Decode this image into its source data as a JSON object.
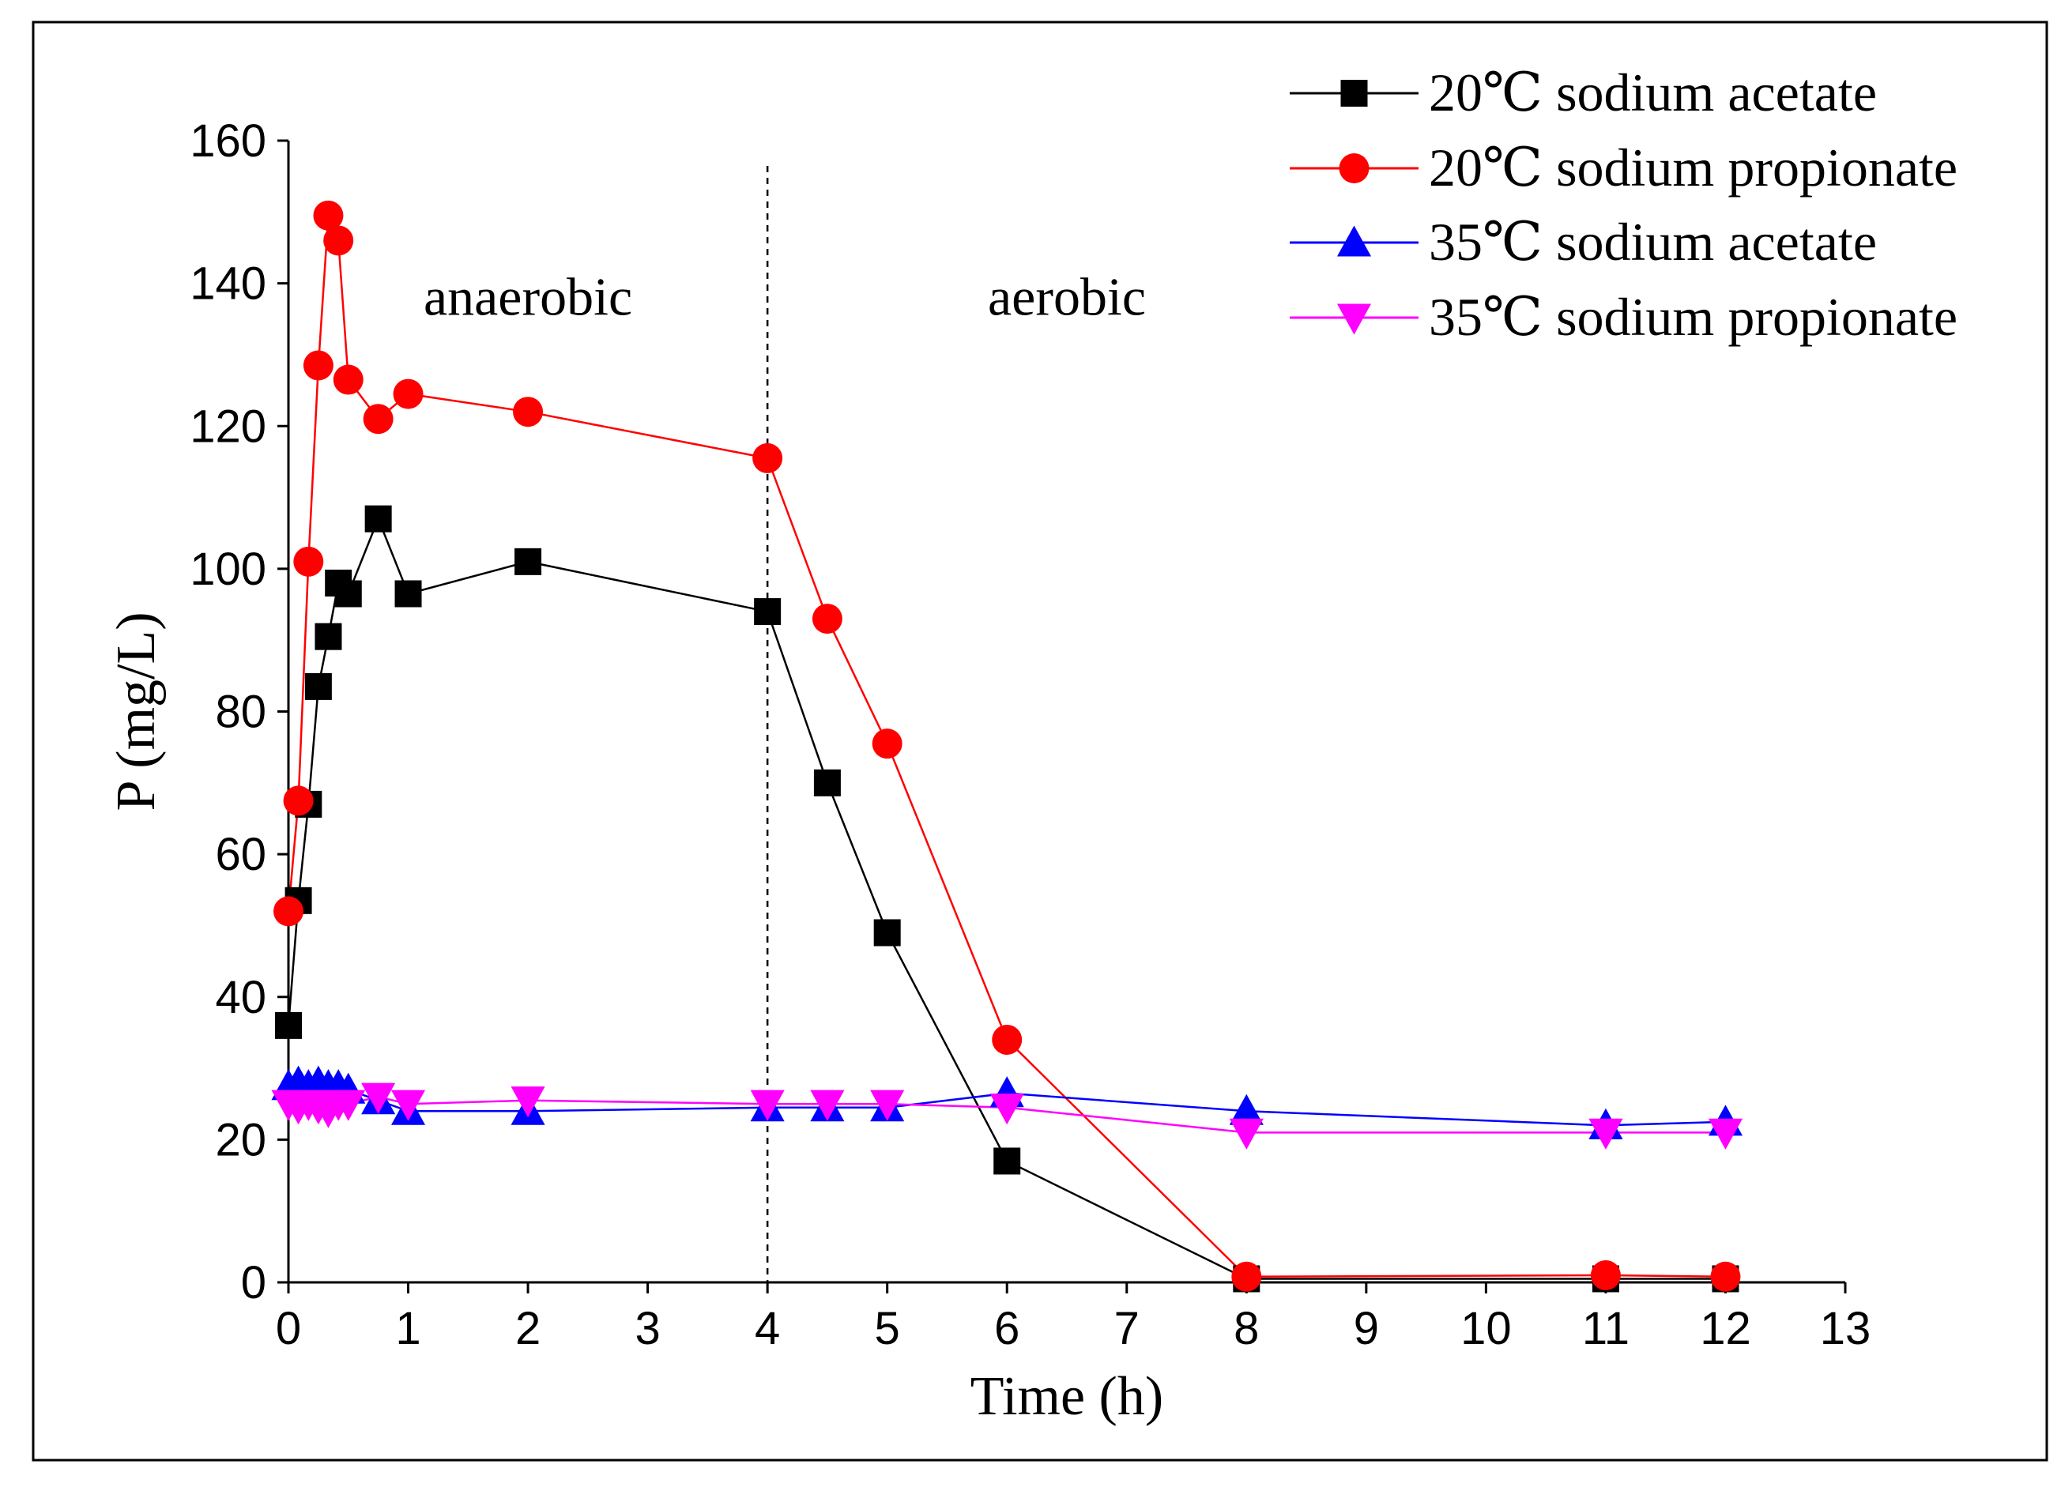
{
  "chart_data": {
    "type": "line",
    "title": "",
    "xlabel": "Time (h)",
    "ylabel": "P (mg/L)",
    "xlim": [
      0,
      13
    ],
    "ylim": [
      0,
      160
    ],
    "xticks": [
      0,
      1,
      2,
      3,
      4,
      5,
      6,
      7,
      8,
      9,
      10,
      11,
      12,
      13
    ],
    "yticks": [
      0,
      20,
      40,
      60,
      80,
      100,
      120,
      140,
      160
    ],
    "grid": false,
    "legend_position": "top-right",
    "divider": {
      "x": 4,
      "style": "dashed"
    },
    "annotations": [
      {
        "text": "anaerobic",
        "x": 2.0,
        "y": 138
      },
      {
        "text": "aerobic",
        "x": 6.5,
        "y": 138
      }
    ],
    "series": [
      {
        "name": "20℃ sodium acetate",
        "color": "#000000",
        "marker": "square",
        "x": [
          0,
          0.083,
          0.167,
          0.25,
          0.333,
          0.417,
          0.5,
          0.75,
          1,
          2,
          4,
          4.5,
          5,
          6,
          8,
          11,
          12
        ],
        "y": [
          36,
          53.5,
          67,
          83.5,
          90.5,
          98,
          96.5,
          107,
          96.5,
          101,
          94,
          70,
          49,
          17,
          0.5,
          0.5,
          0.5
        ]
      },
      {
        "name": "20℃ sodium propionate",
        "color": "#ff0000",
        "marker": "circle",
        "x": [
          0,
          0.083,
          0.167,
          0.25,
          0.333,
          0.417,
          0.5,
          0.75,
          1,
          2,
          4,
          4.5,
          5,
          6,
          8,
          11,
          12
        ],
        "y": [
          52,
          67.5,
          101,
          128.5,
          149.5,
          146,
          126.5,
          121,
          124.5,
          122,
          115.5,
          93,
          75.5,
          34,
          0.8,
          1,
          0.8
        ]
      },
      {
        "name": "35℃ sodium acetate",
        "color": "#0000ff",
        "marker": "triangle-up",
        "x": [
          0,
          0.083,
          0.167,
          0.25,
          0.333,
          0.417,
          0.5,
          0.75,
          1,
          2,
          4,
          4.5,
          5,
          6,
          8,
          11,
          12
        ],
        "y": [
          27.5,
          28,
          27.5,
          28,
          27.5,
          27.5,
          27,
          25.5,
          24,
          24,
          24.5,
          24.5,
          24.5,
          26.5,
          24,
          22,
          22.5
        ]
      },
      {
        "name": "35℃ sodium propionate",
        "color": "#ff00ff",
        "marker": "triangle-down",
        "x": [
          0,
          0.083,
          0.167,
          0.25,
          0.333,
          0.417,
          0.5,
          0.75,
          1,
          2,
          4,
          4.5,
          5,
          6,
          8,
          11,
          12
        ],
        "y": [
          25,
          24.5,
          25,
          24.5,
          24,
          25,
          25,
          26,
          25,
          25.5,
          25,
          25,
          25,
          24.5,
          21,
          21,
          21
        ]
      }
    ]
  }
}
